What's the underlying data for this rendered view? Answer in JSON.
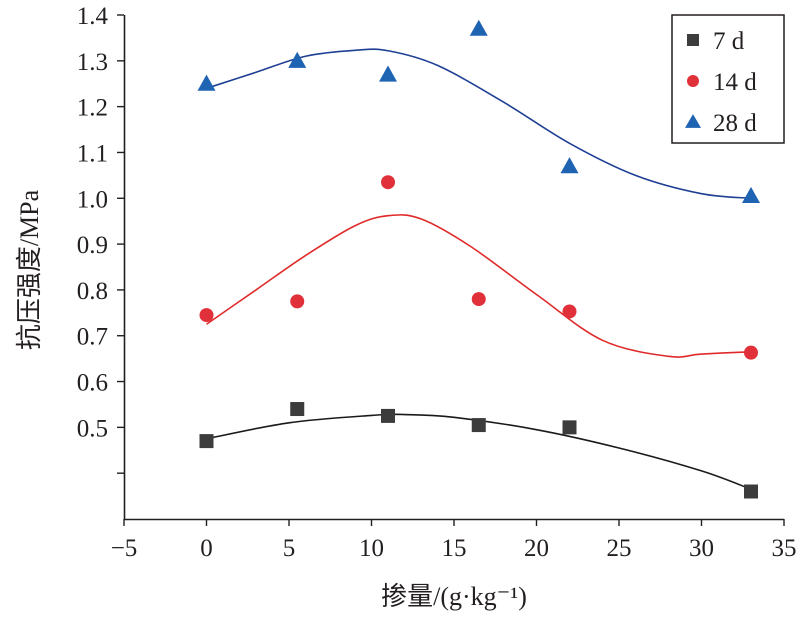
{
  "chart_data": {
    "type": "scatter",
    "xlabel": "掺量/(g·kg⁻¹)",
    "ylabel": "抗压强度/MPa",
    "xlim": [
      -5,
      35
    ],
    "ylim": [
      0.3,
      1.4
    ],
    "x_ticks": [
      -5,
      0,
      5,
      10,
      15,
      20,
      25,
      30,
      35
    ],
    "x_tick_labels": [
      "−5",
      "0",
      "5",
      "10",
      "15",
      "20",
      "25",
      "30",
      "35"
    ],
    "y_ticks": [
      0.4,
      0.5,
      0.6,
      0.7,
      0.8,
      0.9,
      1.0,
      1.1,
      1.2,
      1.3,
      1.4
    ],
    "y_tick_labels": [
      "",
      "0.5",
      "0.6",
      "0.7",
      "0.8",
      "0.9",
      "1.0",
      "1.1",
      "1.2",
      "1.3",
      "1.4"
    ],
    "grid": false,
    "legend_position": "top-right",
    "series": [
      {
        "name": "7 d",
        "marker": "square",
        "color": "#3c3c3c",
        "curve_color": "#1a1a1a",
        "x": [
          0,
          5.5,
          11,
          16.5,
          22,
          33
        ],
        "y": [
          0.47,
          0.54,
          0.525,
          0.505,
          0.5,
          0.36
        ],
        "fit_x": [
          0,
          5,
          10,
          12,
          15,
          20,
          25,
          30,
          33
        ],
        "fit_y": [
          0.475,
          0.51,
          0.526,
          0.528,
          0.522,
          0.495,
          0.455,
          0.405,
          0.365
        ]
      },
      {
        "name": "14 d",
        "marker": "circle",
        "color": "#e0303a",
        "curve_color": "#e02a2a",
        "x": [
          0,
          5.5,
          11,
          16.5,
          22,
          33
        ],
        "y": [
          0.745,
          0.775,
          1.035,
          0.78,
          0.753,
          0.663
        ],
        "fit_x": [
          0,
          3,
          6,
          9,
          11,
          13,
          16,
          20,
          24,
          28,
          30,
          33
        ],
        "fit_y": [
          0.725,
          0.8,
          0.875,
          0.94,
          0.962,
          0.955,
          0.895,
          0.79,
          0.69,
          0.655,
          0.66,
          0.665
        ]
      },
      {
        "name": "28 d",
        "marker": "triangle",
        "color": "#1f63b3",
        "curve_color": "#1e3f94",
        "x": [
          0,
          5.5,
          11,
          16.5,
          22,
          33
        ],
        "y": [
          1.25,
          1.3,
          1.27,
          1.37,
          1.07,
          1.005
        ],
        "fit_x": [
          0,
          3,
          6,
          9,
          11,
          14,
          18,
          22,
          26,
          30,
          33
        ],
        "fit_y": [
          1.24,
          1.275,
          1.31,
          1.323,
          1.322,
          1.29,
          1.21,
          1.12,
          1.05,
          1.01,
          1.0
        ]
      }
    ]
  }
}
